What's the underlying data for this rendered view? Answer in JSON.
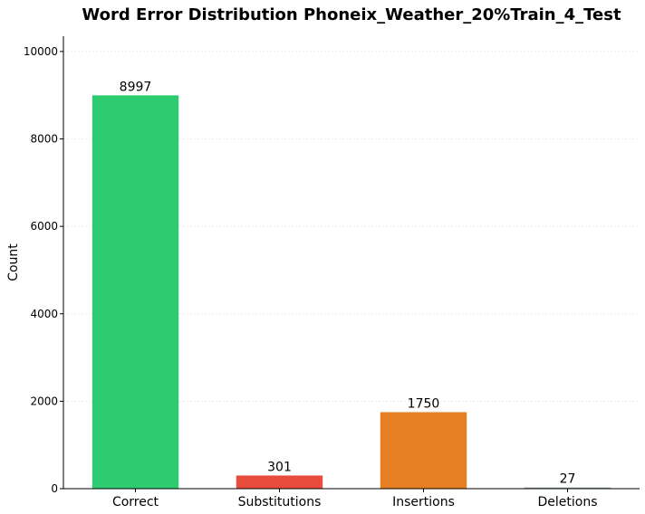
{
  "chart_data": {
    "type": "bar",
    "title": "Word Error Distribution Phoneix_Weather_20%Train_4_Test",
    "xlabel": "",
    "ylabel": "Count",
    "categories": [
      "Correct",
      "Substitutions",
      "Insertions",
      "Deletions"
    ],
    "values": [
      8997,
      301,
      1750,
      27
    ],
    "data_labels": [
      "8997",
      "301",
      "1750",
      "27"
    ],
    "colors": [
      "#2ecc71",
      "#e74c3c",
      "#e67e22",
      "#95a5a6"
    ],
    "ylim": [
      0,
      10350
    ],
    "yticks": [
      0,
      2000,
      4000,
      6000,
      8000,
      10000
    ],
    "ytick_labels": [
      "0",
      "2000",
      "4000",
      "6000",
      "8000",
      "10000"
    ],
    "grid": true,
    "grid_axis": "y"
  }
}
